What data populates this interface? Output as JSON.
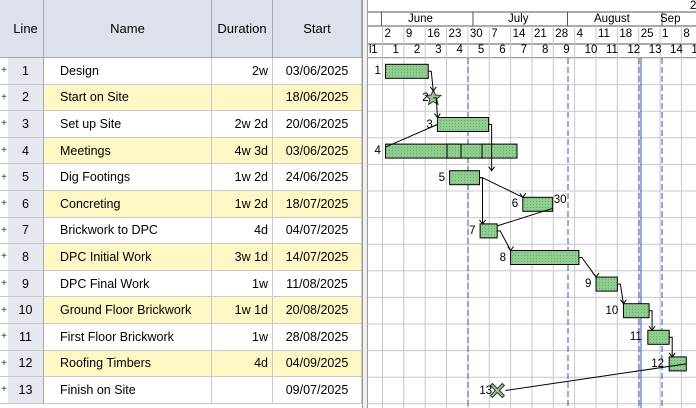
{
  "columns": {
    "line": "Line",
    "name": "Name",
    "duration": "Duration",
    "start": "Start"
  },
  "tasks": [
    {
      "line": "1",
      "name": "Design",
      "duration": "2w",
      "start": "03/06/2025",
      "highlight": false,
      "label": "1",
      "type": "bar"
    },
    {
      "line": "2",
      "name": "Start on Site",
      "duration": "",
      "start": "18/06/2025",
      "highlight": true,
      "label": "2",
      "type": "milestone-star"
    },
    {
      "line": "3",
      "name": "Set up Site",
      "duration": "2w 2d",
      "start": "20/06/2025",
      "highlight": false,
      "label": "3",
      "type": "bar"
    },
    {
      "line": "4",
      "name": "Meetings",
      "duration": "4w 3d",
      "start": "03/06/2025",
      "highlight": true,
      "label": "4",
      "type": "bar"
    },
    {
      "line": "5",
      "name": "Dig Footings",
      "duration": "1w 2d",
      "start": "24/06/2025",
      "highlight": false,
      "label": "5",
      "type": "bar"
    },
    {
      "line": "6",
      "name": "Concreting",
      "duration": "1w 2d",
      "start": "18/07/2025",
      "highlight": true,
      "label": "6",
      "type": "bar"
    },
    {
      "line": "7",
      "name": "Brickwork to DPC",
      "duration": "4d",
      "start": "04/07/2025",
      "highlight": false,
      "label": "7",
      "type": "bar"
    },
    {
      "line": "8",
      "name": "DPC Initial Work",
      "duration": "3w 1d",
      "start": "14/07/2025",
      "highlight": true,
      "label": "8",
      "type": "bar"
    },
    {
      "line": "9",
      "name": "DPC Final Work",
      "duration": "1w",
      "start": "11/08/2025",
      "highlight": false,
      "label": "9",
      "type": "bar"
    },
    {
      "line": "10",
      "name": "Ground Floor Brickwork",
      "duration": "1w 1d",
      "start": "20/08/2025",
      "highlight": true,
      "label": "10",
      "type": "bar"
    },
    {
      "line": "11",
      "name": "First Floor Brickwork",
      "duration": "1w",
      "start": "28/08/2025",
      "highlight": false,
      "label": "11",
      "type": "bar"
    },
    {
      "line": "12",
      "name": "Roofing Timbers",
      "duration": "4d",
      "start": "04/09/2025",
      "highlight": true,
      "label": "12",
      "type": "bar"
    },
    {
      "line": "13",
      "name": "Finish on Site",
      "duration": "",
      "start": "09/07/2025",
      "highlight": false,
      "label": "13",
      "type": "milestone-x"
    }
  ],
  "row_handle": "+",
  "timeline": {
    "year_label": "2",
    "months": [
      "June",
      "July",
      "August",
      "Sep"
    ],
    "week_ticks": [
      "2",
      "9",
      "16",
      "23",
      "30",
      "7",
      "14",
      "21",
      "28",
      "4",
      "11",
      "18",
      "25",
      "1",
      "8"
    ],
    "week_numbers": [
      "1",
      "1",
      "2",
      "3",
      "4",
      "5",
      "6",
      "7",
      "8",
      "9",
      "10",
      "11",
      "12",
      "13",
      "14",
      "1"
    ],
    "extra_label": "30",
    "leading_label": "l"
  },
  "colors": {
    "bar_fill": "#8fce8f",
    "bar_border": "#000000",
    "highlight_row": "#fff8c4",
    "header_bg": "#dde1ec",
    "dashed_line": "#3050c8"
  }
}
